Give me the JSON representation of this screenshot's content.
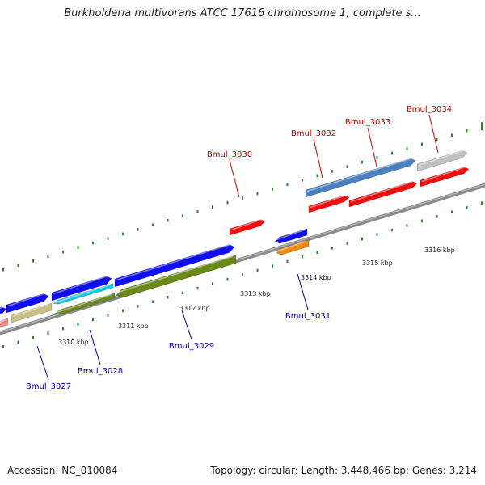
{
  "header": {
    "title": "Burkholderia multivorans ATCC 17616 chromosome 1, complete s..."
  },
  "footer": {
    "accession": "Accession: NC_010084",
    "topology": "Topology: circular; Length: 3,448,466 bp; Genes: 3,214"
  },
  "colors": {
    "backbone": "#8a8a8a",
    "forward_label": "#cc0000",
    "reverse_label": "#0000aa",
    "tick": "#2a8a2a"
  },
  "kbp_ticks": [
    "3310 kbp",
    "3311 kbp",
    "3312 kbp",
    "3313 kbp",
    "3314 kbp",
    "3315 kbp",
    "3316 kbp"
  ],
  "gene_labels": [
    {
      "text": "Bmul_3027",
      "strand": "reverse"
    },
    {
      "text": "Bmul_3028",
      "strand": "reverse"
    },
    {
      "text": "Bmul_3029",
      "strand": "reverse"
    },
    {
      "text": "Bmul_3030",
      "strand": "forward"
    },
    {
      "text": "Bmul_3031",
      "strand": "reverse"
    },
    {
      "text": "Bmul_3032",
      "strand": "forward"
    },
    {
      "text": "Bmul_3033",
      "strand": "forward"
    },
    {
      "text": "Bmul_3034",
      "strand": "forward"
    }
  ],
  "features": [
    {
      "name": "pink-block",
      "color": "#f08a8a",
      "dir": "left"
    },
    {
      "name": "khaki-block",
      "color": "#c8c088",
      "dir": "none"
    },
    {
      "name": "blue-block-a",
      "color": "#1010ee",
      "dir": "right"
    },
    {
      "name": "blue-block-b",
      "color": "#1010ee",
      "dir": "right"
    },
    {
      "name": "cyan-block",
      "color": "#10c8e0",
      "dir": "left"
    },
    {
      "name": "olive-block-a",
      "color": "#6a8a1a",
      "dir": "left"
    },
    {
      "name": "blue-block-c",
      "color": "#1010ee",
      "dir": "right"
    },
    {
      "name": "olive-block-b",
      "color": "#6a8a1a",
      "dir": "left"
    },
    {
      "name": "blue-block-d",
      "color": "#1010ee",
      "dir": "right"
    },
    {
      "name": "red-block-a",
      "color": "#ee1010",
      "dir": "right"
    },
    {
      "name": "blue-block-e",
      "color": "#1010ee",
      "dir": "left"
    },
    {
      "name": "orange-block",
      "color": "#f08a10",
      "dir": "left"
    },
    {
      "name": "steelblue-block",
      "color": "#4a80c0",
      "dir": "right"
    },
    {
      "name": "red-block-b",
      "color": "#ee1010",
      "dir": "right"
    },
    {
      "name": "red-block-c",
      "color": "#ee1010",
      "dir": "right"
    },
    {
      "name": "grey-block",
      "color": "#c0c0c0",
      "dir": "right"
    },
    {
      "name": "red-block-d",
      "color": "#ee1010",
      "dir": "right"
    }
  ]
}
